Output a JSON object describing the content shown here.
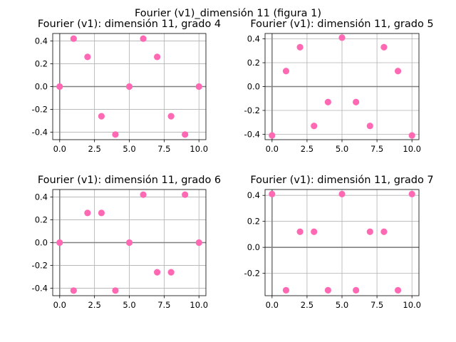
{
  "figure_title": "Fourier (v1)_dimensión 11 (figura 1)",
  "colors": {
    "points": "#ff69b4",
    "axis_line": "#808080",
    "grid": "#b0b0b0",
    "frame": "#000000"
  },
  "chart_data": [
    {
      "type": "scatter",
      "title": "Fourier (v1): dimensión 11, grado 4",
      "x": [
        0,
        1,
        2,
        3,
        4,
        5,
        6,
        7,
        8,
        9,
        10
      ],
      "y": [
        0.0,
        0.42,
        0.26,
        -0.26,
        -0.42,
        0.0,
        0.42,
        0.26,
        -0.26,
        -0.42,
        0.0
      ],
      "xlim": [
        -0.5,
        10.5
      ],
      "ylim": [
        -0.465,
        0.465
      ],
      "xticks": [
        "0.0",
        "2.5",
        "5.0",
        "7.5",
        "10.0"
      ],
      "yticks": [
        "-0.4",
        "-0.2",
        "0.0",
        "0.2",
        "0.4"
      ],
      "grid": true
    },
    {
      "type": "scatter",
      "title": "Fourier (v1): dimensión 11, grado 5",
      "x": [
        0,
        1,
        2,
        3,
        4,
        5,
        6,
        7,
        8,
        9,
        10
      ],
      "y": [
        -0.41,
        0.13,
        0.33,
        -0.33,
        -0.13,
        0.41,
        -0.13,
        -0.33,
        0.33,
        0.13,
        -0.41
      ],
      "xlim": [
        -0.5,
        10.5
      ],
      "ylim": [
        -0.445,
        0.445
      ],
      "xticks": [
        "0.0",
        "2.5",
        "5.0",
        "7.5",
        "10.0"
      ],
      "yticks": [
        "-0.4",
        "-0.2",
        "0.0",
        "0.2",
        "0.4"
      ],
      "grid": true
    },
    {
      "type": "scatter",
      "title": "Fourier (v1): dimensión 11, grado 6",
      "x": [
        0,
        1,
        2,
        3,
        4,
        5,
        6,
        7,
        8,
        9,
        10
      ],
      "y": [
        0.0,
        -0.42,
        0.26,
        0.26,
        -0.42,
        0.0,
        0.42,
        -0.26,
        -0.26,
        0.42,
        0.0
      ],
      "xlim": [
        -0.5,
        10.5
      ],
      "ylim": [
        -0.465,
        0.465
      ],
      "xticks": [
        "0.0",
        "2.5",
        "5.0",
        "7.5",
        "10.0"
      ],
      "yticks": [
        "-0.4",
        "-0.2",
        "0.0",
        "0.2",
        "0.4"
      ],
      "grid": true
    },
    {
      "type": "scatter",
      "title": "Fourier (v1): dimensión 11, grado 7",
      "x": [
        0,
        1,
        2,
        3,
        4,
        5,
        6,
        7,
        8,
        9,
        10
      ],
      "y": [
        0.41,
        -0.33,
        0.12,
        0.12,
        -0.33,
        0.41,
        -0.33,
        0.12,
        0.12,
        -0.33,
        0.41
      ],
      "xlim": [
        -0.5,
        10.5
      ],
      "ylim": [
        -0.372,
        0.445
      ],
      "xticks": [
        "0.0",
        "2.5",
        "5.0",
        "7.5",
        "10.0"
      ],
      "yticks": [
        "-0.2",
        "0.0",
        "0.2",
        "0.4"
      ],
      "grid": true
    }
  ]
}
